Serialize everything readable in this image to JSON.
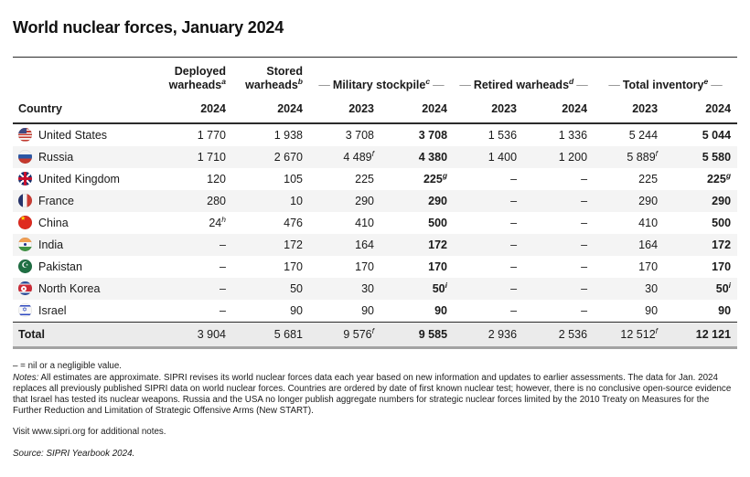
{
  "title": "World nuclear forces, January 2024",
  "ui": {
    "dash": "—"
  },
  "chart_data": {
    "type": "table",
    "title": "World nuclear forces, January 2024",
    "country_column_header": "Country",
    "column_groups": [
      {
        "label": "Deployed warheads",
        "footnote": "a",
        "years": [
          "2024"
        ]
      },
      {
        "label": "Stored warheads",
        "footnote": "b",
        "years": [
          "2024"
        ]
      },
      {
        "label": "Military stockpile",
        "footnote": "c",
        "years": [
          "2023",
          "2024"
        ]
      },
      {
        "label": "Retired warheads",
        "footnote": "d",
        "years": [
          "2023",
          "2024"
        ]
      },
      {
        "label": "Total inventory",
        "footnote": "e",
        "years": [
          "2023",
          "2024"
        ]
      }
    ],
    "year_row": [
      "2024",
      "2024",
      "2023",
      "2024",
      "2023",
      "2024",
      "2023",
      "2024"
    ],
    "column_keys": [
      "deployed-2024",
      "stored-2024",
      "stockpile-2023",
      "stockpile-2024",
      "retired-2023",
      "retired-2024",
      "inventory-2023",
      "inventory-2024"
    ],
    "bold_column_indexes": [
      3,
      7
    ],
    "rows": [
      {
        "country": "United States",
        "flag": "us",
        "values": [
          "1 770",
          "1 938",
          "3 708",
          "3 708",
          "1 536",
          "1 336",
          "5 244",
          "5 044"
        ]
      },
      {
        "country": "Russia",
        "flag": "ru",
        "values": [
          "1 710",
          "2 670",
          "4 489^f",
          "4 380",
          "1 400",
          "1 200",
          "5 889^f",
          "5 580"
        ]
      },
      {
        "country": "United Kingdom",
        "flag": "uk",
        "values": [
          "120",
          "105",
          "225",
          "225^g",
          "–",
          "–",
          "225",
          "225^g"
        ]
      },
      {
        "country": "France",
        "flag": "fr",
        "values": [
          "280",
          "10",
          "290",
          "290",
          "–",
          "–",
          "290",
          "290"
        ]
      },
      {
        "country": "China",
        "flag": "cn",
        "values": [
          "24^h",
          "476",
          "410",
          "500",
          "–",
          "–",
          "410",
          "500"
        ]
      },
      {
        "country": "India",
        "flag": "in",
        "values": [
          "–",
          "172",
          "164",
          "172",
          "–",
          "–",
          "164",
          "172"
        ]
      },
      {
        "country": "Pakistan",
        "flag": "pk",
        "values": [
          "–",
          "170",
          "170",
          "170",
          "–",
          "–",
          "170",
          "170"
        ]
      },
      {
        "country": "North Korea",
        "flag": "kp",
        "values": [
          "–",
          "50",
          "30",
          "50^i",
          "–",
          "–",
          "30",
          "50^i"
        ]
      },
      {
        "country": "Israel",
        "flag": "il",
        "values": [
          "–",
          "90",
          "90",
          "90",
          "–",
          "–",
          "90",
          "90"
        ]
      },
      {
        "country": "Total",
        "flag": null,
        "is_total": true,
        "values": [
          "3 904",
          "5 681",
          "9 576^f",
          "9 585",
          "2 936",
          "2 536",
          "12 512^f",
          "12 121"
        ]
      }
    ]
  },
  "footnotes": {
    "nil": "– = nil or a negligible value.",
    "notes_label": "Notes:",
    "notes_text": " All estimates are approximate. SIPRI revises its world nuclear forces data each year based on new information and updates to earlier assessments. The data for Jan. 2024 replaces all previously published SIPRI data on world nuclear forces. Countries are ordered by date of first known nuclear test; however, there is no conclusive open-source evidence that Israel has tested its nuclear weapons. Russia and the USA no longer publish aggregate numbers for strategic nuclear forces limited by the 2010 Treaty on Measures for the Further Reduction and Limitation of Strategic Offensive Arms (New START).",
    "visit": "Visit www.sipri.org for additional notes.",
    "source": "Source: SIPRI Yearbook 2024."
  }
}
